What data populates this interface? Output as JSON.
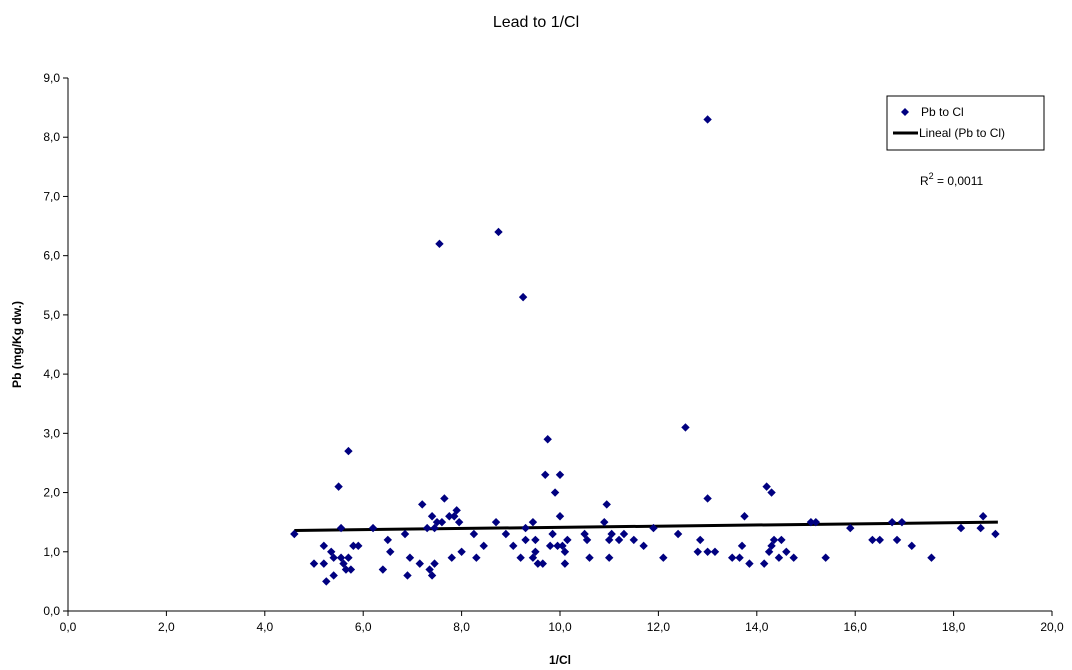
{
  "chart_data": {
    "type": "scatter",
    "title": "Lead to 1/Cl",
    "xlabel": "1/Cl",
    "ylabel": "Pb (mg/Kg dw.)",
    "xlim": [
      0,
      20
    ],
    "ylim": [
      0,
      9
    ],
    "x_ticks": [
      "0,0",
      "2,0",
      "4,0",
      "6,0",
      "8,0",
      "10,0",
      "12,0",
      "14,0",
      "16,0",
      "18,0",
      "20,0"
    ],
    "y_ticks": [
      "0,0",
      "1,0",
      "2,0",
      "3,0",
      "4,0",
      "5,0",
      "6,0",
      "7,0",
      "8,0",
      "9,0"
    ],
    "grid": false,
    "legend_position": "top-right",
    "series": [
      {
        "name": "Pb to Cl",
        "marker": "diamond",
        "color": "#000080",
        "points": [
          [
            4.6,
            1.3
          ],
          [
            5.0,
            0.8
          ],
          [
            5.2,
            0.8
          ],
          [
            5.2,
            1.1
          ],
          [
            5.25,
            0.5
          ],
          [
            5.35,
            1.0
          ],
          [
            5.4,
            0.9
          ],
          [
            5.4,
            0.6
          ],
          [
            5.5,
            2.1
          ],
          [
            5.55,
            1.4
          ],
          [
            5.55,
            0.9
          ],
          [
            5.6,
            0.8
          ],
          [
            5.65,
            0.7
          ],
          [
            5.7,
            2.7
          ],
          [
            5.7,
            0.9
          ],
          [
            5.75,
            0.7
          ],
          [
            5.8,
            1.1
          ],
          [
            5.9,
            1.1
          ],
          [
            6.2,
            1.4
          ],
          [
            6.4,
            0.7
          ],
          [
            6.5,
            1.2
          ],
          [
            6.55,
            1.0
          ],
          [
            6.85,
            1.3
          ],
          [
            6.9,
            0.6
          ],
          [
            6.95,
            0.9
          ],
          [
            7.15,
            0.8
          ],
          [
            7.2,
            1.8
          ],
          [
            7.3,
            1.4
          ],
          [
            7.35,
            0.7
          ],
          [
            7.4,
            0.6
          ],
          [
            7.4,
            1.6
          ],
          [
            7.45,
            1.4
          ],
          [
            7.45,
            0.8
          ],
          [
            7.5,
            1.5
          ],
          [
            7.55,
            6.2
          ],
          [
            7.6,
            1.5
          ],
          [
            7.65,
            1.9
          ],
          [
            7.75,
            1.6
          ],
          [
            7.8,
            0.9
          ],
          [
            7.85,
            1.6
          ],
          [
            7.9,
            1.7
          ],
          [
            7.95,
            1.5
          ],
          [
            8.0,
            1.0
          ],
          [
            8.25,
            1.3
          ],
          [
            8.3,
            0.9
          ],
          [
            8.45,
            1.1
          ],
          [
            8.7,
            1.5
          ],
          [
            8.75,
            6.4
          ],
          [
            8.9,
            1.3
          ],
          [
            9.05,
            1.1
          ],
          [
            9.2,
            0.9
          ],
          [
            9.25,
            5.3
          ],
          [
            9.3,
            1.4
          ],
          [
            9.3,
            1.2
          ],
          [
            9.45,
            1.5
          ],
          [
            9.45,
            0.9
          ],
          [
            9.5,
            1.2
          ],
          [
            9.5,
            1.0
          ],
          [
            9.55,
            0.8
          ],
          [
            9.65,
            0.8
          ],
          [
            9.7,
            2.3
          ],
          [
            9.75,
            2.9
          ],
          [
            9.8,
            1.1
          ],
          [
            9.85,
            1.3
          ],
          [
            9.9,
            2.0
          ],
          [
            9.95,
            1.1
          ],
          [
            10.0,
            2.3
          ],
          [
            10.0,
            1.6
          ],
          [
            10.05,
            1.1
          ],
          [
            10.1,
            1.0
          ],
          [
            10.1,
            0.8
          ],
          [
            10.15,
            1.2
          ],
          [
            10.5,
            1.3
          ],
          [
            10.55,
            1.2
          ],
          [
            10.6,
            0.9
          ],
          [
            10.9,
            1.5
          ],
          [
            10.95,
            1.8
          ],
          [
            11.0,
            1.2
          ],
          [
            11.0,
            0.9
          ],
          [
            11.05,
            1.3
          ],
          [
            11.2,
            1.2
          ],
          [
            11.3,
            1.3
          ],
          [
            11.5,
            1.2
          ],
          [
            11.7,
            1.1
          ],
          [
            11.9,
            1.4
          ],
          [
            12.1,
            0.9
          ],
          [
            12.4,
            1.3
          ],
          [
            12.55,
            3.1
          ],
          [
            12.8,
            1.0
          ],
          [
            12.85,
            1.2
          ],
          [
            13.0,
            8.3
          ],
          [
            13.0,
            1.9
          ],
          [
            13.0,
            1.0
          ],
          [
            13.15,
            1.0
          ],
          [
            13.5,
            0.9
          ],
          [
            13.65,
            0.9
          ],
          [
            13.7,
            1.1
          ],
          [
            13.75,
            1.6
          ],
          [
            13.85,
            0.8
          ],
          [
            14.15,
            0.8
          ],
          [
            14.2,
            2.1
          ],
          [
            14.25,
            1.0
          ],
          [
            14.3,
            1.1
          ],
          [
            14.3,
            2.0
          ],
          [
            14.35,
            1.2
          ],
          [
            14.45,
            0.9
          ],
          [
            14.5,
            1.2
          ],
          [
            14.6,
            1.0
          ],
          [
            14.75,
            0.9
          ],
          [
            15.1,
            1.5
          ],
          [
            15.2,
            1.5
          ],
          [
            15.4,
            0.9
          ],
          [
            15.9,
            1.4
          ],
          [
            16.35,
            1.2
          ],
          [
            16.5,
            1.2
          ],
          [
            16.75,
            1.5
          ],
          [
            16.85,
            1.2
          ],
          [
            16.95,
            1.5
          ],
          [
            17.15,
            1.1
          ],
          [
            17.55,
            0.9
          ],
          [
            18.15,
            1.4
          ],
          [
            18.55,
            1.4
          ],
          [
            18.6,
            1.6
          ],
          [
            18.85,
            1.3
          ]
        ]
      }
    ],
    "trendline": {
      "name": "Lineal (Pb to Cl)",
      "type": "linear",
      "x_range": [
        4.6,
        18.9
      ],
      "y_range": [
        1.36,
        1.5
      ],
      "color": "#000000"
    },
    "annotation": {
      "r2_prefix": "R",
      "r2_superscript": "2",
      "r2_value_text": " = 0,0011"
    }
  }
}
